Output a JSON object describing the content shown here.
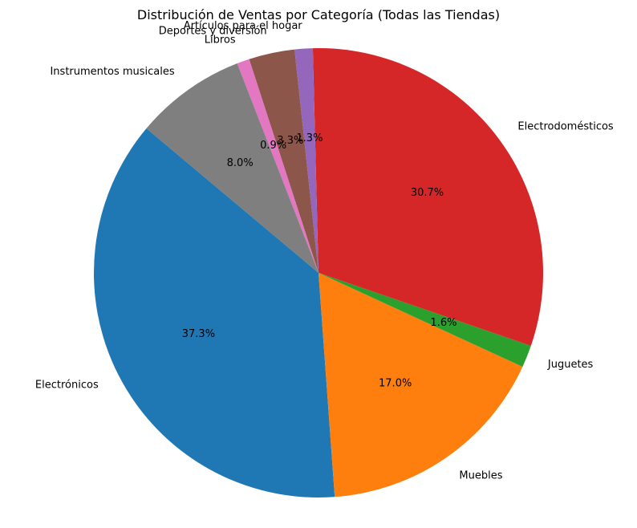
{
  "chart_data": {
    "type": "pie",
    "title": "Distribución de Ventas por Categoría (Todas las Tiendas)",
    "start_angle_deg": 140,
    "direction": "counterclockwise",
    "slices": [
      {
        "label": "Electrónicos",
        "value": 37.3,
        "pct_label": "37.3%",
        "color": "#1f77b4"
      },
      {
        "label": "Muebles",
        "value": 17.0,
        "pct_label": "17.0%",
        "color": "#ff7f0e"
      },
      {
        "label": "Juguetes",
        "value": 1.6,
        "pct_label": "1.6%",
        "color": "#2ca02c"
      },
      {
        "label": "Electrodomésticos",
        "value": 30.7,
        "pct_label": "30.7%",
        "color": "#d62728"
      },
      {
        "label": "Artículos para el hogar",
        "value": 1.3,
        "pct_label": "1.3%",
        "color": "#9467bd"
      },
      {
        "label": "Deportes y diversión",
        "value": 3.3,
        "pct_label": "3.3%",
        "color": "#8c564b"
      },
      {
        "label": "Libros",
        "value": 0.9,
        "pct_label": "0.9%",
        "color": "#e377c2"
      },
      {
        "label": "Instrumentos musicales",
        "value": 8.0,
        "pct_label": "8.0%",
        "color": "#7f7f7f"
      }
    ]
  }
}
